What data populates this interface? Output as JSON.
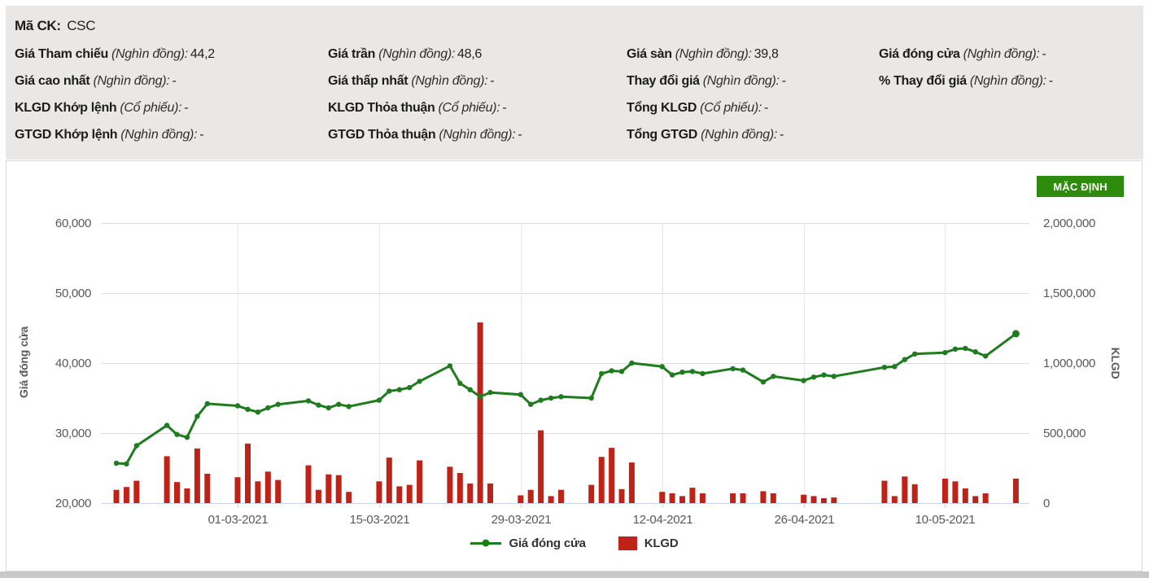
{
  "stock_info": {
    "code_label": "Mã CK:",
    "code_value": "CSC",
    "fields": [
      {
        "label": "Giá Tham chiếu",
        "unit": "(Nghìn đồng):",
        "value": "44,2"
      },
      {
        "label": "Giá trần",
        "unit": "(Nghìn đồng):",
        "value": "48,6"
      },
      {
        "label": "Giá sàn",
        "unit": "(Nghìn đồng):",
        "value": "39,8"
      },
      {
        "label": "Giá đóng cửa",
        "unit": "(Nghìn đồng):",
        "value": "-"
      },
      {
        "label": "Giá cao nhất",
        "unit": "(Nghìn đồng):",
        "value": "-"
      },
      {
        "label": "Giá thấp nhất",
        "unit": "(Nghìn đồng):",
        "value": "-"
      },
      {
        "label": "Thay đổi giá",
        "unit": "(Nghìn đồng):",
        "value": "-"
      },
      {
        "label": "% Thay đổi giá",
        "unit": "(Nghìn đồng):",
        "value": "-"
      },
      {
        "label": "KLGD Khớp lệnh",
        "unit": "(Cổ phiếu):",
        "value": "-"
      },
      {
        "label": "KLGD Thỏa thuận",
        "unit": "(Cổ phiếu):",
        "value": "-"
      },
      {
        "label": "Tổng KLGD",
        "unit": "(Cổ phiếu):",
        "value": "-"
      },
      {
        "label": "GTGD Khớp lệnh",
        "unit": "(Nghìn đồng):",
        "value": "-"
      },
      {
        "label": "GTGD Thỏa thuận",
        "unit": "(Nghìn đồng):",
        "value": "-"
      },
      {
        "label": "Tổng GTGD",
        "unit": "(Nghìn đồng):",
        "value": "-"
      }
    ]
  },
  "chart": {
    "button_label": "MẶC ĐỊNH",
    "button_color": "#2e8b0e"
  },
  "chart_data": {
    "type": "line+column",
    "series": [
      {
        "name": "Giá đóng cửa",
        "type": "line",
        "color": "#1e7b1e"
      },
      {
        "name": "KLGD",
        "type": "column",
        "color": "#bf2318"
      }
    ],
    "axes": {
      "left": {
        "title": "Giá đóng cửa",
        "min": 20000,
        "max": 60000,
        "ticks": [
          {
            "v": 20000,
            "label": "20,000"
          },
          {
            "v": 30000,
            "label": "30,000"
          },
          {
            "v": 40000,
            "label": "40,000"
          },
          {
            "v": 50000,
            "label": "50,000"
          },
          {
            "v": 60000,
            "label": "60,000"
          }
        ]
      },
      "right": {
        "title": "KLGD",
        "min": 0,
        "max": 2000000,
        "ticks": [
          {
            "v": 0,
            "label": "0"
          },
          {
            "v": 500000,
            "label": "500,000"
          },
          {
            "v": 1000000,
            "label": "1,000,000"
          },
          {
            "v": 1500000,
            "label": "1,500,000"
          },
          {
            "v": 2000000,
            "label": "2,000,000"
          }
        ]
      },
      "x": {
        "tick_dates": [
          "01-03-2021",
          "15-03-2021",
          "29-03-2021",
          "12-04-2021",
          "26-04-2021",
          "10-05-2021"
        ]
      }
    },
    "points": [
      {
        "date": "17-02-2021",
        "close": 25700,
        "volume": 95000
      },
      {
        "date": "18-02-2021",
        "close": 25600,
        "volume": 115000
      },
      {
        "date": "19-02-2021",
        "close": 28200,
        "volume": 160000
      },
      {
        "date": "22-02-2021",
        "close": 31100,
        "volume": 335000
      },
      {
        "date": "23-02-2021",
        "close": 29800,
        "volume": 150000
      },
      {
        "date": "24-02-2021",
        "close": 29400,
        "volume": 105000
      },
      {
        "date": "25-02-2021",
        "close": 32400,
        "volume": 390000
      },
      {
        "date": "26-02-2021",
        "close": 34200,
        "volume": 210000
      },
      {
        "date": "01-03-2021",
        "close": 33900,
        "volume": 185000
      },
      {
        "date": "02-03-2021",
        "close": 33400,
        "volume": 425000
      },
      {
        "date": "03-03-2021",
        "close": 33000,
        "volume": 155000
      },
      {
        "date": "04-03-2021",
        "close": 33600,
        "volume": 225000
      },
      {
        "date": "05-03-2021",
        "close": 34100,
        "volume": 165000
      },
      {
        "date": "08-03-2021",
        "close": 34600,
        "volume": 270000
      },
      {
        "date": "09-03-2021",
        "close": 34000,
        "volume": 95000
      },
      {
        "date": "10-03-2021",
        "close": 33600,
        "volume": 205000
      },
      {
        "date": "11-03-2021",
        "close": 34100,
        "volume": 200000
      },
      {
        "date": "12-03-2021",
        "close": 33800,
        "volume": 80000
      },
      {
        "date": "15-03-2021",
        "close": 34700,
        "volume": 155000
      },
      {
        "date": "16-03-2021",
        "close": 36000,
        "volume": 325000
      },
      {
        "date": "17-03-2021",
        "close": 36200,
        "volume": 120000
      },
      {
        "date": "18-03-2021",
        "close": 36500,
        "volume": 130000
      },
      {
        "date": "19-03-2021",
        "close": 37400,
        "volume": 305000
      },
      {
        "date": "22-03-2021",
        "close": 39600,
        "volume": 260000
      },
      {
        "date": "23-03-2021",
        "close": 37100,
        "volume": 215000
      },
      {
        "date": "24-03-2021",
        "close": 36200,
        "volume": 140000
      },
      {
        "date": "25-03-2021",
        "close": 35200,
        "volume": 1290000
      },
      {
        "date": "26-03-2021",
        "close": 35800,
        "volume": 140000
      },
      {
        "date": "29-03-2021",
        "close": 35500,
        "volume": 55000
      },
      {
        "date": "30-03-2021",
        "close": 34100,
        "volume": 95000
      },
      {
        "date": "31-03-2021",
        "close": 34700,
        "volume": 520000
      },
      {
        "date": "01-04-2021",
        "close": 35000,
        "volume": 50000
      },
      {
        "date": "02-04-2021",
        "close": 35200,
        "volume": 95000
      },
      {
        "date": "05-04-2021",
        "close": 35000,
        "volume": 130000
      },
      {
        "date": "06-04-2021",
        "close": 38500,
        "volume": 330000
      },
      {
        "date": "07-04-2021",
        "close": 38900,
        "volume": 395000
      },
      {
        "date": "08-04-2021",
        "close": 38800,
        "volume": 100000
      },
      {
        "date": "09-04-2021",
        "close": 40000,
        "volume": 290000
      },
      {
        "date": "12-04-2021",
        "close": 39500,
        "volume": 80000
      },
      {
        "date": "13-04-2021",
        "close": 38300,
        "volume": 70000
      },
      {
        "date": "14-04-2021",
        "close": 38700,
        "volume": 50000
      },
      {
        "date": "15-04-2021",
        "close": 38800,
        "volume": 110000
      },
      {
        "date": "16-04-2021",
        "close": 38500,
        "volume": 70000
      },
      {
        "date": "19-04-2021",
        "close": 39200,
        "volume": 70000
      },
      {
        "date": "20-04-2021",
        "close": 39000,
        "volume": 70000
      },
      {
        "date": "22-04-2021",
        "close": 37300,
        "volume": 85000
      },
      {
        "date": "23-04-2021",
        "close": 38100,
        "volume": 70000
      },
      {
        "date": "26-04-2021",
        "close": 37500,
        "volume": 60000
      },
      {
        "date": "27-04-2021",
        "close": 38000,
        "volume": 50000
      },
      {
        "date": "28-04-2021",
        "close": 38300,
        "volume": 35000
      },
      {
        "date": "29-04-2021",
        "close": 38100,
        "volume": 40000
      },
      {
        "date": "04-05-2021",
        "close": 39400,
        "volume": 160000
      },
      {
        "date": "05-05-2021",
        "close": 39500,
        "volume": 50000
      },
      {
        "date": "06-05-2021",
        "close": 40500,
        "volume": 190000
      },
      {
        "date": "07-05-2021",
        "close": 41300,
        "volume": 135000
      },
      {
        "date": "10-05-2021",
        "close": 41500,
        "volume": 175000
      },
      {
        "date": "11-05-2021",
        "close": 42000,
        "volume": 155000
      },
      {
        "date": "12-05-2021",
        "close": 42100,
        "volume": 105000
      },
      {
        "date": "13-05-2021",
        "close": 41600,
        "volume": 50000
      },
      {
        "date": "14-05-2021",
        "close": 41000,
        "volume": 70000
      },
      {
        "date": "17-05-2021",
        "close": 44200,
        "volume": 175000
      }
    ]
  }
}
